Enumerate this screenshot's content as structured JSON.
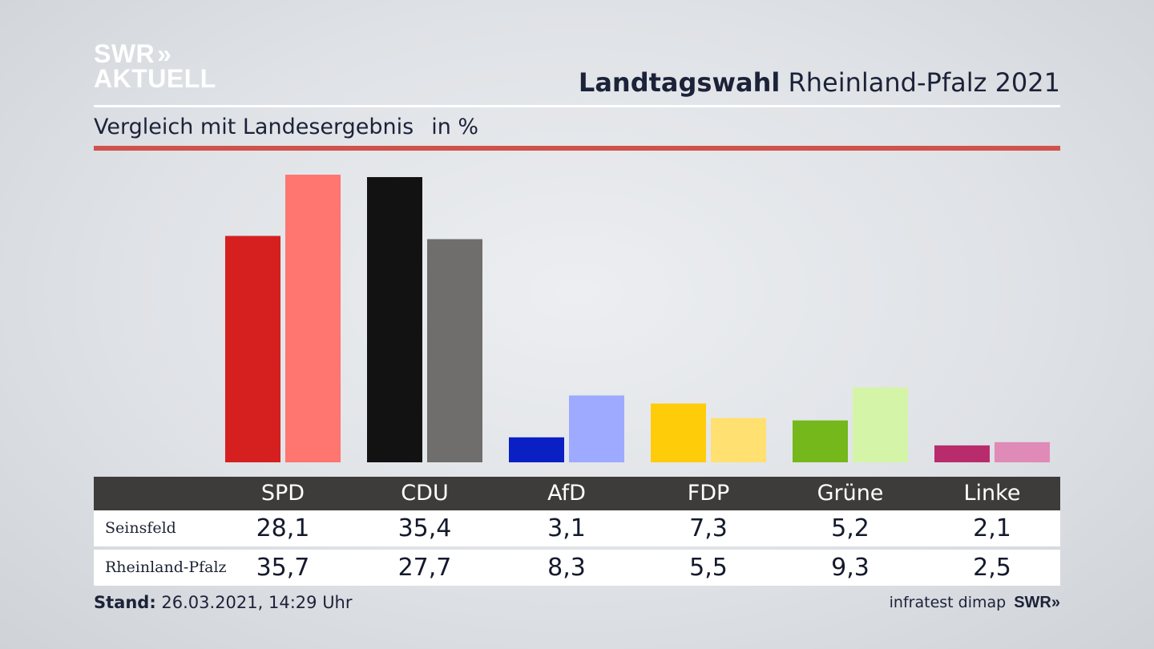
{
  "header": {
    "logo_line1": "SWR",
    "logo_chevrons": "»",
    "logo_line2": "AKTUELL",
    "title_bold": "Landtagswahl",
    "title_rest": "Rheinland-Pfalz 2021",
    "subtitle": "Vergleich mit Landesergebnis",
    "unit": "in %"
  },
  "chart_data": {
    "type": "bar",
    "categories": [
      "SPD",
      "CDU",
      "AfD",
      "FDP",
      "Grüne",
      "Linke"
    ],
    "series": [
      {
        "name": "Seinsfeld",
        "values": [
          28.1,
          35.4,
          3.1,
          7.3,
          5.2,
          2.1
        ],
        "labels": [
          "28,1",
          "35,4",
          "3,1",
          "7,3",
          "5,2",
          "2,1"
        ],
        "colors": [
          "#d62020",
          "#121212",
          "#0a1fc4",
          "#ffcc0a",
          "#74b81c",
          "#b82c6e"
        ]
      },
      {
        "name": "Rheinland-Pfalz",
        "values": [
          35.7,
          27.7,
          8.3,
          5.5,
          9.3,
          2.5
        ],
        "labels": [
          "35,7",
          "27,7",
          "8,3",
          "5,5",
          "9,3",
          "2,5"
        ],
        "colors": [
          "#ff7570",
          "#6f6e6c",
          "#9eaaff",
          "#ffe070",
          "#d4f5a8",
          "#e08ab8"
        ]
      }
    ],
    "ylim": [
      0,
      36
    ]
  },
  "footer": {
    "stand_label": "Stand:",
    "stand_value": "26.03.2021, 14:29 Uhr",
    "source": "infratest dimap",
    "source_logo": "SWR»"
  }
}
